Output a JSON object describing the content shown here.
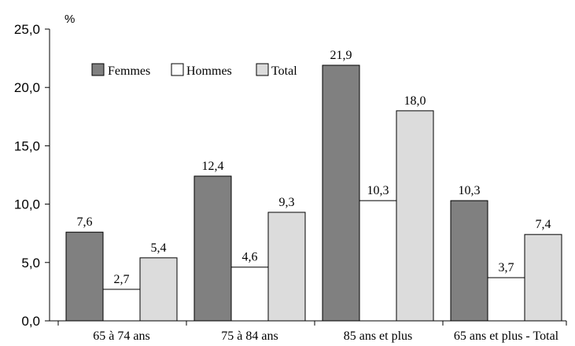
{
  "chart_data": {
    "type": "bar",
    "title": "",
    "xlabel": "",
    "ylabel": "%",
    "ylim": [
      0,
      25
    ],
    "yticks": [
      "0,0",
      "5,0",
      "10,0",
      "15,0",
      "20,0",
      "25,0"
    ],
    "categories": [
      "65 à 74 ans",
      "75 à 84 ans",
      "85 ans et plus",
      "65 ans et plus - Total"
    ],
    "series": [
      {
        "name": "Femmes",
        "color": "#808080",
        "values": [
          7.6,
          12.4,
          21.9,
          10.3
        ],
        "labels": [
          "7,6",
          "12,4",
          "21,9",
          "10,3"
        ]
      },
      {
        "name": "Hommes",
        "color": "#ffffff",
        "values": [
          2.7,
          4.6,
          10.3,
          3.7
        ],
        "labels": [
          "2,7",
          "4,6",
          "10,3",
          "3,7"
        ]
      },
      {
        "name": "Total",
        "color": "#dcdcdc",
        "values": [
          5.4,
          9.3,
          18.0,
          7.4
        ],
        "labels": [
          "5,4",
          "9,3",
          "18,0",
          "7,4"
        ]
      }
    ],
    "legend": "top-left",
    "grid": false
  }
}
